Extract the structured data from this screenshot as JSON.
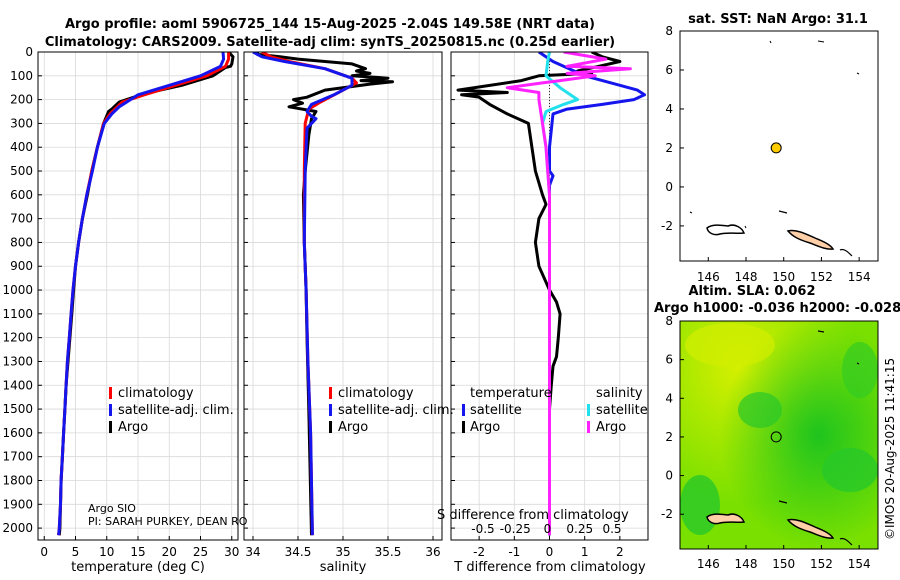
{
  "figure": {
    "title_line1": "Argo profile: aoml 5906725_144 15-Aug-2025 -2.04S 149.58E (NRT data)",
    "title_line2": "Climatology: CARS2009. Satellite-adj clim: synTS_20250815.nc (0.25d earlier)",
    "watermark": "©IMOS 20-Aug-2025 11:41:15",
    "argo_center": "Argo SIO",
    "pi_text": "PI: SARAH PURKEY, DEAN RO"
  },
  "colors": {
    "argo": "#000000",
    "climatology": "#ff0000",
    "satellite": "#1515ee",
    "sal_sat_diff": "#22e0ee",
    "sal_argo_diff": "#ff22ff",
    "grid": "#d9d9d9",
    "land_fill": "#ffcfa8",
    "marker": "#ffcc00",
    "sla_dark": "#1ea11e",
    "sla_light": "#c8f000"
  },
  "legends": {
    "profile": [
      "climatology",
      "satellite-adj. clim.",
      "Argo"
    ],
    "diff_headers": [
      "temperature",
      "salinity"
    ],
    "diff_items": [
      "satellite",
      "Argo",
      "satellite",
      "Argo"
    ],
    "diff_overlap": "S difference from climatology"
  },
  "map_sst": {
    "title": "sat. SST: NaN Argo: 31.1",
    "argo_lon": 149.6,
    "argo_lat": 2.0
  },
  "map_sla": {
    "title1": "Altim. SLA: 0.062",
    "title2": "Argo h1000: -0.036 h2000: -0.028",
    "argo_lon": 149.6,
    "argo_lat": 2.0
  },
  "chart_data": [
    {
      "type": "line",
      "name": "temperature-profile",
      "xlabel": "temperature (deg C)",
      "ylabel": "pressure",
      "xlim": [
        -1,
        31
      ],
      "ylim": [
        2050,
        0
      ],
      "xticks": [
        "0",
        "5",
        "10",
        "15",
        "20",
        "25",
        "30"
      ],
      "yticks": [
        "0",
        "100",
        "200",
        "300",
        "400",
        "500",
        "600",
        "700",
        "800",
        "900",
        "1000",
        "1100",
        "1200",
        "1300",
        "1400",
        "1500",
        "1600",
        "1700",
        "1800",
        "1900",
        "2000"
      ],
      "series": [
        {
          "name": "Argo",
          "color": "#000000",
          "points": [
            [
              29.5,
              0
            ],
            [
              30.2,
              20
            ],
            [
              30,
              50
            ],
            [
              29.8,
              60
            ],
            [
              29,
              65
            ],
            [
              27,
              100
            ],
            [
              22,
              140
            ],
            [
              16,
              175
            ],
            [
              12,
              210
            ],
            [
              10.8,
              240
            ],
            [
              10.3,
              250
            ],
            [
              9.5,
              300
            ],
            [
              8.5,
              400
            ],
            [
              7.6,
              500
            ],
            [
              6.9,
              600
            ],
            [
              6.1,
              700
            ],
            [
              5.5,
              800
            ],
            [
              5,
              900
            ],
            [
              4.7,
              1000
            ],
            [
              4.4,
              1100
            ],
            [
              4.1,
              1200
            ],
            [
              3.8,
              1300
            ],
            [
              3.5,
              1400
            ],
            [
              3.3,
              1500
            ],
            [
              3.1,
              1600
            ],
            [
              2.9,
              1700
            ],
            [
              2.7,
              1800
            ],
            [
              2.6,
              1900
            ],
            [
              2.5,
              2000
            ],
            [
              2.4,
              2030
            ]
          ]
        },
        {
          "name": "climatology",
          "color": "#ff0000",
          "points": [
            [
              29.5,
              0
            ],
            [
              29.5,
              30
            ],
            [
              29,
              60
            ],
            [
              26,
              100
            ],
            [
              21,
              140
            ],
            [
              16,
              180
            ],
            [
              12.5,
              210
            ],
            [
              10.5,
              260
            ],
            [
              9.5,
              300
            ],
            [
              8.5,
              400
            ],
            [
              7.6,
              500
            ],
            [
              6.8,
              600
            ],
            [
              6.1,
              700
            ],
            [
              5.5,
              800
            ],
            [
              5,
              900
            ],
            [
              4.6,
              1000
            ],
            [
              4.3,
              1100
            ],
            [
              4,
              1200
            ],
            [
              3.7,
              1300
            ],
            [
              3.5,
              1400
            ],
            [
              3.3,
              1500
            ],
            [
              3.1,
              1600
            ],
            [
              2.9,
              1700
            ],
            [
              2.7,
              1800
            ],
            [
              2.6,
              1900
            ],
            [
              2.4,
              2000
            ],
            [
              2.3,
              2030
            ]
          ]
        },
        {
          "name": "satellite-adj. clim.",
          "color": "#1515ee",
          "points": [
            [
              28.6,
              0
            ],
            [
              28.7,
              30
            ],
            [
              28.2,
              60
            ],
            [
              25,
              100
            ],
            [
              20,
              140
            ],
            [
              15,
              180
            ],
            [
              12,
              230
            ],
            [
              10.8,
              260
            ],
            [
              9.6,
              300
            ],
            [
              8.5,
              400
            ],
            [
              7.7,
              500
            ],
            [
              6.8,
              600
            ],
            [
              6.1,
              700
            ],
            [
              5.5,
              800
            ],
            [
              5,
              900
            ],
            [
              4.6,
              1000
            ],
            [
              4.3,
              1100
            ],
            [
              4,
              1200
            ],
            [
              3.7,
              1300
            ],
            [
              3.5,
              1400
            ],
            [
              3.3,
              1500
            ],
            [
              3.1,
              1600
            ],
            [
              2.9,
              1700
            ],
            [
              2.7,
              1800
            ],
            [
              2.6,
              1900
            ],
            [
              2.4,
              2000
            ],
            [
              2.3,
              2030
            ]
          ]
        }
      ]
    },
    {
      "type": "line",
      "name": "salinity-profile",
      "xlabel": "salinity",
      "xlim": [
        33.9,
        36.1
      ],
      "ylim": [
        2050,
        0
      ],
      "xticks": [
        "34",
        "34.5",
        "35",
        "35.5",
        "36"
      ],
      "series": [
        {
          "name": "Argo",
          "color": "#000000",
          "points": [
            [
              34.05,
              0
            ],
            [
              34.05,
              10
            ],
            [
              34.3,
              20
            ],
            [
              34.5,
              30
            ],
            [
              35.1,
              50
            ],
            [
              35.25,
              70
            ],
            [
              35.15,
              80
            ],
            [
              35.3,
              90
            ],
            [
              35.1,
              100
            ],
            [
              35.5,
              110
            ],
            [
              35.2,
              120
            ],
            [
              35.55,
              125
            ],
            [
              35.3,
              135
            ],
            [
              34.8,
              160
            ],
            [
              34.6,
              190
            ],
            [
              34.45,
              200
            ],
            [
              34.55,
              215
            ],
            [
              34.4,
              230
            ],
            [
              34.7,
              250
            ],
            [
              34.65,
              280
            ],
            [
              34.62,
              350
            ],
            [
              34.58,
              500
            ],
            [
              34.56,
              600
            ],
            [
              34.57,
              800
            ],
            [
              34.59,
              1000
            ],
            [
              34.6,
              1200
            ],
            [
              34.62,
              1500
            ],
            [
              34.65,
              2030
            ]
          ]
        },
        {
          "name": "climatology",
          "color": "#ff0000",
          "points": [
            [
              34.1,
              0
            ],
            [
              34.2,
              20
            ],
            [
              34.4,
              40
            ],
            [
              34.8,
              70
            ],
            [
              35.1,
              110
            ],
            [
              35.15,
              130
            ],
            [
              34.95,
              170
            ],
            [
              34.75,
              210
            ],
            [
              34.62,
              240
            ],
            [
              34.58,
              300
            ],
            [
              34.57,
              500
            ],
            [
              34.57,
              800
            ],
            [
              34.59,
              1000
            ],
            [
              34.61,
              1300
            ],
            [
              34.64,
              1600
            ],
            [
              34.66,
              2030
            ]
          ]
        },
        {
          "name": "satellite-adj. clim.",
          "color": "#1515ee",
          "points": [
            [
              34.0,
              0
            ],
            [
              34.1,
              20
            ],
            [
              34.35,
              40
            ],
            [
              34.8,
              70
            ],
            [
              35.1,
              110
            ],
            [
              35.1,
              140
            ],
            [
              34.9,
              180
            ],
            [
              34.65,
              220
            ],
            [
              34.6,
              250
            ],
            [
              34.65,
              270
            ],
            [
              34.7,
              280
            ],
            [
              34.6,
              320
            ],
            [
              34.58,
              500
            ],
            [
              34.57,
              800
            ],
            [
              34.59,
              1000
            ],
            [
              34.61,
              1300
            ],
            [
              34.64,
              1600
            ],
            [
              34.66,
              2030
            ]
          ]
        }
      ]
    },
    {
      "type": "line",
      "name": "difference-profile",
      "xlabel": "T difference from climatology",
      "xlim": [
        -2.8,
        2.8
      ],
      "ylim": [
        2050,
        0
      ],
      "xticks": [
        "-2",
        "-1",
        "0",
        "1",
        "2"
      ],
      "top_xticks": [
        "-0.5",
        "-0.25",
        "0",
        "0.25",
        "0.5"
      ],
      "series": [
        {
          "name": "T Argo",
          "color": "#000000",
          "points": [
            [
              1.2,
              0
            ],
            [
              1.5,
              20
            ],
            [
              2,
              40
            ],
            [
              1.4,
              60
            ],
            [
              0.8,
              80
            ],
            [
              1.2,
              90
            ],
            [
              -0.3,
              100
            ],
            [
              -0.8,
              120
            ],
            [
              -2.6,
              160
            ],
            [
              -1.2,
              170
            ],
            [
              -2.5,
              180
            ],
            [
              -2,
              190
            ],
            [
              -1.8,
              210
            ],
            [
              -1.7,
              220
            ],
            [
              -1.2,
              260
            ],
            [
              -0.6,
              300
            ],
            [
              -0.5,
              400
            ],
            [
              -0.4,
              500
            ],
            [
              -0.2,
              600
            ],
            [
              -0.1,
              640
            ],
            [
              -0.3,
              700
            ],
            [
              -0.4,
              800
            ],
            [
              -0.3,
              900
            ],
            [
              0,
              1000
            ],
            [
              0.2,
              1050
            ],
            [
              0.3,
              1100
            ],
            [
              0.25,
              1200
            ],
            [
              0.2,
              1280
            ],
            [
              0.1,
              1320
            ],
            [
              0.05,
              1400
            ],
            [
              0,
              1500
            ],
            [
              0,
              2030
            ]
          ]
        },
        {
          "name": "T satellite",
          "color": "#1515ee",
          "points": [
            [
              -0.3,
              0
            ],
            [
              0.1,
              40
            ],
            [
              1,
              100
            ],
            [
              2,
              140
            ],
            [
              2.5,
              160
            ],
            [
              2.7,
              180
            ],
            [
              2.4,
              200
            ],
            [
              1.5,
              220
            ],
            [
              0.5,
              240
            ],
            [
              0.1,
              260
            ],
            [
              0,
              400
            ],
            [
              0,
              500
            ],
            [
              0.1,
              520
            ],
            [
              0,
              560
            ],
            [
              0,
              2030
            ]
          ]
        },
        {
          "name": "S satellite",
          "color": "#22e0ee",
          "points": [
            [
              0,
              0
            ],
            [
              -0.05,
              40
            ],
            [
              -0.1,
              100
            ],
            [
              0.3,
              150
            ],
            [
              0.8,
              200
            ],
            [
              0.4,
              220
            ],
            [
              -0.1,
              250
            ],
            [
              -0.2,
              300
            ],
            [
              -0.1,
              400
            ],
            [
              -0.05,
              500
            ],
            [
              0,
              600
            ],
            [
              0,
              2030
            ]
          ]
        },
        {
          "name": "S Argo",
          "color": "#ff22ff",
          "points": [
            [
              0.4,
              0
            ],
            [
              1.6,
              30
            ],
            [
              0.5,
              60
            ],
            [
              2.3,
              70
            ],
            [
              0.5,
              90
            ],
            [
              1.3,
              100
            ],
            [
              0.3,
              120
            ],
            [
              -0.2,
              130
            ],
            [
              -1.2,
              150
            ],
            [
              -0.3,
              170
            ],
            [
              -0.3,
              200
            ],
            [
              -0.2,
              300
            ],
            [
              -0.1,
              400
            ],
            [
              -0.05,
              500
            ],
            [
              0,
              600
            ],
            [
              0,
              2030
            ]
          ]
        }
      ]
    },
    {
      "type": "map",
      "name": "sst-map",
      "xlim": [
        144.5,
        155
      ],
      "ylim": [
        -3.8,
        8
      ],
      "xticks": [
        "146",
        "148",
        "150",
        "152",
        "154"
      ],
      "yticks": [
        "-2",
        "0",
        "2",
        "4",
        "6",
        "8"
      ],
      "argo_position": [
        149.6,
        2.0
      ]
    },
    {
      "type": "map",
      "name": "sla-map",
      "xlim": [
        144.5,
        155
      ],
      "ylim": [
        -3.8,
        8
      ],
      "xticks": [
        "146",
        "148",
        "150",
        "152",
        "154"
      ],
      "yticks": [
        "-2",
        "0",
        "2",
        "4",
        "6",
        "8"
      ],
      "argo_position": [
        149.6,
        2.0
      ]
    }
  ]
}
